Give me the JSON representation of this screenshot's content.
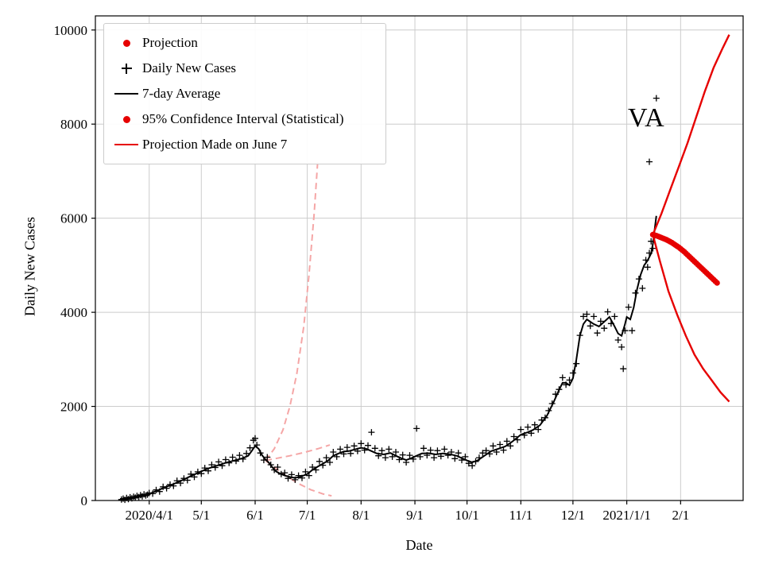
{
  "figure": {
    "background": "#ffffff"
  },
  "chart_data": {
    "type": "scatter",
    "title": "",
    "annotation": "VA",
    "xlabel": "Date",
    "ylabel": "Daily New Cases",
    "x_unit": "days since 2020-01-01 (2020/4/1 = 91)",
    "xlim": [
      60,
      433
    ],
    "ylim": [
      0,
      10300
    ],
    "grid": true,
    "colors": {
      "daily_new_cases": "#000000",
      "seven_day_average": "#000000",
      "projection": "#e60000",
      "confidence_interval": "#e60000",
      "june7_projection": "#f5a6a6",
      "grid": "#cccccc",
      "axes": "#000000"
    },
    "y_ticks": [
      0,
      2000,
      4000,
      6000,
      8000,
      10000
    ],
    "x_ticks": [
      {
        "day": 91,
        "label": "2020/4/1"
      },
      {
        "day": 121,
        "label": "5/1"
      },
      {
        "day": 152,
        "label": "6/1"
      },
      {
        "day": 182,
        "label": "7/1"
      },
      {
        "day": 213,
        "label": "8/1"
      },
      {
        "day": 244,
        "label": "9/1"
      },
      {
        "day": 274,
        "label": "10/1"
      },
      {
        "day": 305,
        "label": "11/1"
      },
      {
        "day": 335,
        "label": "12/1"
      },
      {
        "day": 366,
        "label": "2021/1/1"
      },
      {
        "day": 397,
        "label": "2/1"
      }
    ],
    "legend": {
      "position": "upper-left",
      "items": [
        {
          "label": "Projection",
          "marker": "red-dot"
        },
        {
          "label": "Daily New Cases",
          "marker": "black-plus"
        },
        {
          "label": "7-day Average",
          "marker": "black-line"
        },
        {
          "label": "95% Confidence Interval (Statistical)",
          "marker": "red-dot"
        },
        {
          "label": "Projection Made on June 7",
          "marker": "red-line"
        }
      ]
    },
    "series": {
      "daily_new_cases": [
        [
          75,
          20
        ],
        [
          76,
          40
        ],
        [
          77,
          15
        ],
        [
          78,
          55
        ],
        [
          79,
          30
        ],
        [
          80,
          70
        ],
        [
          81,
          45
        ],
        [
          82,
          80
        ],
        [
          83,
          60
        ],
        [
          84,
          100
        ],
        [
          85,
          75
        ],
        [
          86,
          115
        ],
        [
          87,
          90
        ],
        [
          88,
          130
        ],
        [
          89,
          105
        ],
        [
          90,
          125
        ],
        [
          91,
          160
        ],
        [
          93,
          145
        ],
        [
          95,
          225
        ],
        [
          97,
          190
        ],
        [
          99,
          290
        ],
        [
          101,
          260
        ],
        [
          103,
          340
        ],
        [
          105,
          310
        ],
        [
          107,
          420
        ],
        [
          109,
          370
        ],
        [
          111,
          470
        ],
        [
          113,
          430
        ],
        [
          115,
          560
        ],
        [
          117,
          500
        ],
        [
          119,
          610
        ],
        [
          121,
          570
        ],
        [
          123,
          690
        ],
        [
          125,
          630
        ],
        [
          127,
          760
        ],
        [
          129,
          700
        ],
        [
          131,
          820
        ],
        [
          133,
          740
        ],
        [
          135,
          870
        ],
        [
          137,
          800
        ],
        [
          139,
          920
        ],
        [
          141,
          840
        ],
        [
          143,
          960
        ],
        [
          145,
          880
        ],
        [
          147,
          1000
        ],
        [
          149,
          1120
        ],
        [
          151,
          1280
        ],
        [
          152,
          1320
        ],
        [
          153,
          1180
        ],
        [
          155,
          1010
        ],
        [
          157,
          860
        ],
        [
          159,
          920
        ],
        [
          161,
          760
        ],
        [
          163,
          650
        ],
        [
          165,
          710
        ],
        [
          167,
          560
        ],
        [
          169,
          590
        ],
        [
          171,
          470
        ],
        [
          173,
          550
        ],
        [
          175,
          440
        ],
        [
          177,
          530
        ],
        [
          179,
          480
        ],
        [
          181,
          610
        ],
        [
          183,
          530
        ],
        [
          185,
          710
        ],
        [
          187,
          650
        ],
        [
          189,
          830
        ],
        [
          191,
          750
        ],
        [
          193,
          910
        ],
        [
          195,
          810
        ],
        [
          197,
          1030
        ],
        [
          199,
          930
        ],
        [
          201,
          1090
        ],
        [
          203,
          990
        ],
        [
          205,
          1130
        ],
        [
          207,
          1000
        ],
        [
          209,
          1160
        ],
        [
          211,
          1050
        ],
        [
          213,
          1210
        ],
        [
          215,
          1070
        ],
        [
          217,
          1170
        ],
        [
          219,
          1450
        ],
        [
          221,
          1110
        ],
        [
          223,
          950
        ],
        [
          225,
          1060
        ],
        [
          227,
          910
        ],
        [
          229,
          1090
        ],
        [
          231,
          930
        ],
        [
          233,
          1030
        ],
        [
          235,
          870
        ],
        [
          237,
          970
        ],
        [
          239,
          810
        ],
        [
          241,
          960
        ],
        [
          243,
          880
        ],
        [
          245,
          1530
        ],
        [
          247,
          930
        ],
        [
          249,
          1110
        ],
        [
          251,
          960
        ],
        [
          253,
          1070
        ],
        [
          255,
          910
        ],
        [
          257,
          1060
        ],
        [
          259,
          940
        ],
        [
          261,
          1090
        ],
        [
          263,
          960
        ],
        [
          265,
          1030
        ],
        [
          267,
          890
        ],
        [
          269,
          1010
        ],
        [
          271,
          860
        ],
        [
          273,
          930
        ],
        [
          275,
          790
        ],
        [
          277,
          740
        ],
        [
          279,
          830
        ],
        [
          281,
          910
        ],
        [
          283,
          1010
        ],
        [
          285,
          1060
        ],
        [
          287,
          990
        ],
        [
          289,
          1160
        ],
        [
          291,
          1030
        ],
        [
          293,
          1190
        ],
        [
          295,
          1070
        ],
        [
          297,
          1260
        ],
        [
          299,
          1160
        ],
        [
          301,
          1360
        ],
        [
          303,
          1290
        ],
        [
          305,
          1510
        ],
        [
          307,
          1390
        ],
        [
          309,
          1560
        ],
        [
          311,
          1430
        ],
        [
          313,
          1610
        ],
        [
          315,
          1510
        ],
        [
          317,
          1710
        ],
        [
          319,
          1760
        ],
        [
          321,
          1910
        ],
        [
          323,
          2060
        ],
        [
          325,
          2260
        ],
        [
          327,
          2360
        ],
        [
          329,
          2610
        ],
        [
          331,
          2460
        ],
        [
          333,
          2560
        ],
        [
          335,
          2710
        ],
        [
          337,
          2910
        ],
        [
          339,
          3510
        ],
        [
          341,
          3910
        ],
        [
          343,
          3960
        ],
        [
          345,
          3710
        ],
        [
          347,
          3910
        ],
        [
          349,
          3560
        ],
        [
          351,
          3810
        ],
        [
          353,
          3660
        ],
        [
          355,
          4010
        ],
        [
          357,
          3760
        ],
        [
          359,
          3910
        ],
        [
          361,
          3410
        ],
        [
          363,
          3260
        ],
        [
          364,
          2800
        ],
        [
          365,
          3610
        ],
        [
          367,
          4110
        ],
        [
          369,
          3610
        ],
        [
          371,
          4410
        ],
        [
          373,
          4710
        ],
        [
          375,
          4510
        ],
        [
          377,
          5110
        ],
        [
          378,
          4960
        ],
        [
          379,
          5260
        ],
        [
          379,
          7200
        ],
        [
          380,
          5510
        ],
        [
          381,
          5360
        ],
        [
          382,
          5610
        ],
        [
          383,
          8550
        ]
      ],
      "seven_day_average": [
        [
          76,
          30
        ],
        [
          80,
          60
        ],
        [
          85,
          95
        ],
        [
          91,
          140
        ],
        [
          95,
          200
        ],
        [
          100,
          280
        ],
        [
          105,
          350
        ],
        [
          110,
          430
        ],
        [
          115,
          520
        ],
        [
          121,
          620
        ],
        [
          125,
          680
        ],
        [
          130,
          740
        ],
        [
          135,
          800
        ],
        [
          140,
          850
        ],
        [
          145,
          900
        ],
        [
          148,
          950
        ],
        [
          150,
          1050
        ],
        [
          152,
          1160
        ],
        [
          154,
          1100
        ],
        [
          156,
          960
        ],
        [
          158,
          870
        ],
        [
          160,
          800
        ],
        [
          162,
          700
        ],
        [
          164,
          620
        ],
        [
          166,
          580
        ],
        [
          169,
          530
        ],
        [
          172,
          500
        ],
        [
          175,
          480
        ],
        [
          178,
          505
        ],
        [
          182,
          560
        ],
        [
          185,
          650
        ],
        [
          188,
          720
        ],
        [
          191,
          780
        ],
        [
          194,
          850
        ],
        [
          197,
          950
        ],
        [
          200,
          1000
        ],
        [
          203,
          1040
        ],
        [
          206,
          1050
        ],
        [
          209,
          1080
        ],
        [
          213,
          1120
        ],
        [
          216,
          1100
        ],
        [
          219,
          1050
        ],
        [
          222,
          1000
        ],
        [
          226,
          980
        ],
        [
          230,
          1010
        ],
        [
          233,
          950
        ],
        [
          236,
          900
        ],
        [
          239,
          860
        ],
        [
          242,
          900
        ],
        [
          245,
          950
        ],
        [
          248,
          1000
        ],
        [
          252,
          1005
        ],
        [
          256,
          980
        ],
        [
          260,
          1000
        ],
        [
          264,
          985
        ],
        [
          268,
          950
        ],
        [
          271,
          900
        ],
        [
          274,
          850
        ],
        [
          277,
          810
        ],
        [
          280,
          850
        ],
        [
          284,
          950
        ],
        [
          288,
          1050
        ],
        [
          292,
          1100
        ],
        [
          296,
          1150
        ],
        [
          300,
          1250
        ],
        [
          305,
          1400
        ],
        [
          309,
          1450
        ],
        [
          312,
          1500
        ],
        [
          316,
          1600
        ],
        [
          320,
          1800
        ],
        [
          324,
          2100
        ],
        [
          327,
          2350
        ],
        [
          329,
          2500
        ],
        [
          331,
          2500
        ],
        [
          333,
          2450
        ],
        [
          335,
          2600
        ],
        [
          337,
          3000
        ],
        [
          339,
          3500
        ],
        [
          341,
          3750
        ],
        [
          343,
          3850
        ],
        [
          345,
          3800
        ],
        [
          347,
          3750
        ],
        [
          350,
          3700
        ],
        [
          353,
          3800
        ],
        [
          356,
          3900
        ],
        [
          359,
          3700
        ],
        [
          361,
          3550
        ],
        [
          363,
          3500
        ],
        [
          365,
          3750
        ],
        [
          366,
          3900
        ],
        [
          368,
          3850
        ],
        [
          370,
          4100
        ],
        [
          372,
          4500
        ],
        [
          374,
          4800
        ],
        [
          376,
          5000
        ],
        [
          378,
          5100
        ],
        [
          380,
          5250
        ],
        [
          381,
          5450
        ],
        [
          382,
          5750
        ],
        [
          383,
          6050
        ]
      ],
      "projection": [
        [
          381,
          5650
        ],
        [
          382,
          5640
        ],
        [
          383,
          5630
        ],
        [
          384,
          5615
        ],
        [
          385,
          5600
        ],
        [
          386,
          5585
        ],
        [
          387,
          5570
        ],
        [
          388,
          5555
        ],
        [
          389,
          5540
        ],
        [
          390,
          5520
        ],
        [
          391,
          5500
        ],
        [
          392,
          5480
        ],
        [
          393,
          5455
        ],
        [
          394,
          5430
        ],
        [
          395,
          5405
        ],
        [
          396,
          5380
        ],
        [
          397,
          5350
        ],
        [
          398,
          5320
        ],
        [
          399,
          5290
        ],
        [
          400,
          5255
        ],
        [
          401,
          5220
        ],
        [
          402,
          5185
        ],
        [
          403,
          5150
        ],
        [
          404,
          5115
        ],
        [
          405,
          5080
        ],
        [
          406,
          5045
        ],
        [
          407,
          5010
        ],
        [
          408,
          4975
        ],
        [
          409,
          4940
        ],
        [
          410,
          4905
        ],
        [
          411,
          4870
        ],
        [
          412,
          4835
        ],
        [
          413,
          4800
        ],
        [
          414,
          4765
        ],
        [
          415,
          4730
        ],
        [
          416,
          4695
        ],
        [
          417,
          4660
        ],
        [
          418,
          4625
        ]
      ],
      "ci_upper": [
        [
          381,
          5650
        ],
        [
          386,
          6100
        ],
        [
          391,
          6600
        ],
        [
          396,
          7100
        ],
        [
          401,
          7600
        ],
        [
          406,
          8150
        ],
        [
          411,
          8700
        ],
        [
          416,
          9200
        ],
        [
          421,
          9600
        ],
        [
          425,
          9900
        ]
      ],
      "ci_lower": [
        [
          381,
          5650
        ],
        [
          385,
          5100
        ],
        [
          390,
          4450
        ],
        [
          395,
          3950
        ],
        [
          400,
          3500
        ],
        [
          405,
          3100
        ],
        [
          410,
          2800
        ],
        [
          415,
          2550
        ],
        [
          420,
          2300
        ],
        [
          425,
          2100
        ]
      ],
      "june7_upper": [
        [
          158,
          850
        ],
        [
          163,
          1100
        ],
        [
          168,
          1500
        ],
        [
          172,
          2000
        ],
        [
          176,
          2700
        ],
        [
          180,
          3700
        ],
        [
          183,
          4800
        ],
        [
          186,
          6100
        ],
        [
          188,
          7200
        ]
      ],
      "june7_mid": [
        [
          158,
          850
        ],
        [
          165,
          900
        ],
        [
          172,
          950
        ],
        [
          180,
          1020
        ],
        [
          188,
          1100
        ],
        [
          195,
          1180
        ]
      ],
      "june7_lower": [
        [
          158,
          850
        ],
        [
          164,
          680
        ],
        [
          170,
          520
        ],
        [
          177,
          360
        ],
        [
          184,
          230
        ],
        [
          191,
          140
        ],
        [
          196,
          100
        ]
      ]
    }
  }
}
